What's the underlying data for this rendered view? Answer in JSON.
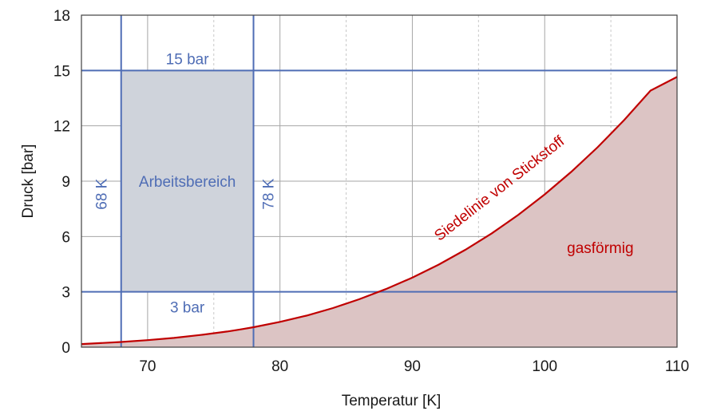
{
  "chart_data": {
    "type": "area",
    "xlabel": "Temperatur [K]",
    "ylabel": "Druck [bar]",
    "xlim": [
      65,
      110
    ],
    "ylim": [
      0,
      18
    ],
    "x_ticks": [
      70,
      80,
      90,
      100,
      110
    ],
    "y_ticks": [
      0,
      3,
      6,
      9,
      12,
      15,
      18
    ],
    "grid": true,
    "series": [
      {
        "name": "Siedelinie von Stickstoff",
        "x": [
          65,
          68,
          70,
          72,
          74,
          76,
          77,
          78,
          80,
          82,
          84,
          86,
          88,
          90,
          92,
          94,
          96,
          98,
          100,
          102,
          104,
          106,
          108,
          110
        ],
        "y": [
          0.17,
          0.28,
          0.38,
          0.5,
          0.66,
          0.85,
          0.96,
          1.08,
          1.37,
          1.71,
          2.12,
          2.6,
          3.15,
          3.77,
          4.48,
          5.28,
          6.17,
          7.17,
          8.28,
          9.5,
          10.84,
          12.31,
          13.91,
          14.65
        ]
      }
    ],
    "shaded_region_under_curve_label": "gasförmig",
    "working_range": {
      "label": "Arbeitsbereich",
      "x": [
        68,
        78
      ],
      "y": [
        3,
        15
      ]
    },
    "reference_lines": [
      {
        "axis": "y",
        "value": 15,
        "label": "15 bar"
      },
      {
        "axis": "y",
        "value": 3,
        "label": "3 bar"
      },
      {
        "axis": "x",
        "value": 68,
        "label": "68 K"
      },
      {
        "axis": "x",
        "value": 78,
        "label": "78 K"
      }
    ],
    "colors": {
      "curve": "#c00000",
      "area_fill": "#dcc4c4",
      "working_fill": "#cfd3db",
      "reference_lines": "#4f6db5",
      "grid_major": "#a6a6a6",
      "grid_minor": "#c8c8c8"
    }
  }
}
